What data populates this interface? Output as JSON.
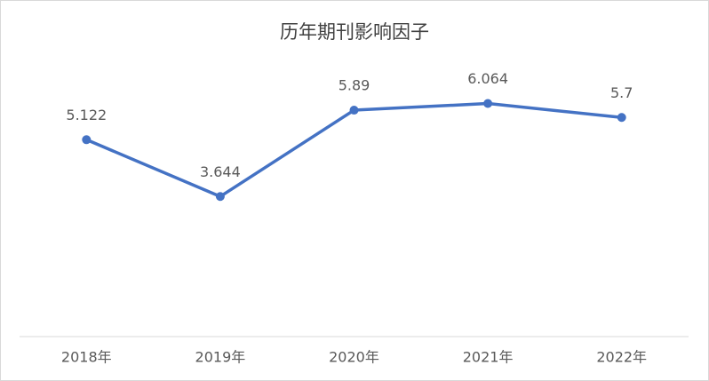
{
  "chart_data": {
    "type": "line",
    "title": "历年期刊影响因子",
    "categories": [
      "2018年",
      "2019年",
      "2020年",
      "2021年",
      "2022年"
    ],
    "values": [
      5.122,
      3.644,
      5.89,
      6.064,
      5.7
    ],
    "color": "#4472c4",
    "ylim": [
      0,
      7
    ],
    "data_labels": true
  }
}
